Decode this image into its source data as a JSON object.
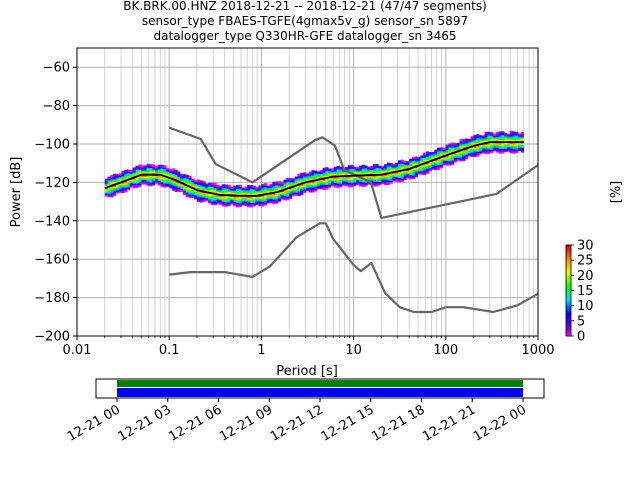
{
  "header": {
    "line1": "BK.BRK.00.HNZ   2018-12-21 -- 2018-12-21  (47/47 segments)",
    "line2": "sensor_type FBAES-TGFE(4gmax5v_g) sensor_sn 5897",
    "line3": "datalogger_type Q330HR-GFE datalogger_sn 3465"
  },
  "chart_data": [
    {
      "type": "heatmap",
      "xlabel": "Period [s]",
      "ylabel": "Power [dB]",
      "x_scale": "log",
      "xlim": [
        0.01,
        1000
      ],
      "ylim": [
        -200,
        -50
      ],
      "grid": true,
      "x_ticks": [
        {
          "value": 0.01,
          "label": "0.01"
        },
        {
          "value": 0.1,
          "label": "0.1"
        },
        {
          "value": 1,
          "label": "1"
        },
        {
          "value": 10,
          "label": "10"
        },
        {
          "value": 100,
          "label": "100"
        },
        {
          "value": 1000,
          "label": "1000"
        }
      ],
      "y_ticks": [
        {
          "value": -60,
          "label": "−60"
        },
        {
          "value": -80,
          "label": "−80"
        },
        {
          "value": -100,
          "label": "−100"
        },
        {
          "value": -120,
          "label": "−120"
        },
        {
          "value": -140,
          "label": "−140"
        },
        {
          "value": -160,
          "label": "−160"
        },
        {
          "value": -180,
          "label": "−180"
        },
        {
          "value": -200,
          "label": "−200"
        }
      ],
      "noise_model_high": [
        [
          0.1,
          -91.5
        ],
        [
          0.22,
          -97.4
        ],
        [
          0.32,
          -110.5
        ],
        [
          0.8,
          -120
        ],
        [
          3.8,
          -98
        ],
        [
          4.6,
          -96.5
        ],
        [
          6.3,
          -101
        ],
        [
          7.9,
          -113.5
        ],
        [
          15.4,
          -120
        ],
        [
          20,
          -138.5
        ],
        [
          354.8,
          -126
        ],
        [
          1000,
          -111
        ]
      ],
      "noise_model_low": [
        [
          0.1,
          -168
        ],
        [
          0.17,
          -166.7
        ],
        [
          0.4,
          -166.7
        ],
        [
          0.8,
          -169.2
        ],
        [
          1.24,
          -163.7
        ],
        [
          2.4,
          -148.6
        ],
        [
          4.3,
          -141.3
        ],
        [
          5,
          -141.3
        ],
        [
          6,
          -149.4
        ],
        [
          10,
          -163
        ],
        [
          12,
          -166.2
        ],
        [
          15.6,
          -162
        ],
        [
          21.9,
          -177.5
        ],
        [
          31.6,
          -185
        ],
        [
          45,
          -187.5
        ],
        [
          70,
          -187.5
        ],
        [
          101,
          -185
        ],
        [
          154,
          -185
        ],
        [
          328,
          -187.5
        ],
        [
          600,
          -184
        ],
        [
          1000,
          -178
        ]
      ],
      "mode_curve": [
        [
          0.02,
          -123
        ],
        [
          0.03,
          -120
        ],
        [
          0.05,
          -116
        ],
        [
          0.08,
          -116
        ],
        [
          0.12,
          -119
        ],
        [
          0.2,
          -124
        ],
        [
          0.35,
          -126.5
        ],
        [
          0.6,
          -127
        ],
        [
          0.9,
          -127
        ],
        [
          1.5,
          -125
        ],
        [
          3,
          -120
        ],
        [
          6,
          -117
        ],
        [
          10,
          -116.5
        ],
        [
          20,
          -116
        ],
        [
          40,
          -113
        ],
        [
          100,
          -106
        ],
        [
          200,
          -101
        ],
        [
          300,
          -99
        ],
        [
          700,
          -99
        ]
      ],
      "psd_colorbar": {
        "label": "[%]",
        "min": 0,
        "max": 30,
        "ticks": [
          0,
          5,
          10,
          15,
          20,
          25,
          30
        ]
      }
    },
    {
      "type": "bar",
      "title": "",
      "xlim": [
        "12-21 00",
        "12-22 00"
      ],
      "x_ticks": [
        "12-21 00",
        "12-21 03",
        "12-21 06",
        "12-21 09",
        "12-21 12",
        "12-21 15",
        "12-21 18",
        "12-21 21",
        "12-22 00"
      ],
      "coverage": [
        {
          "row": "upper",
          "color": "#008000",
          "start_hour": 0,
          "end_hour": 24
        },
        {
          "row": "lower",
          "color": "#0000ff",
          "start_hour": 0,
          "end_hour": 24
        }
      ]
    }
  ]
}
